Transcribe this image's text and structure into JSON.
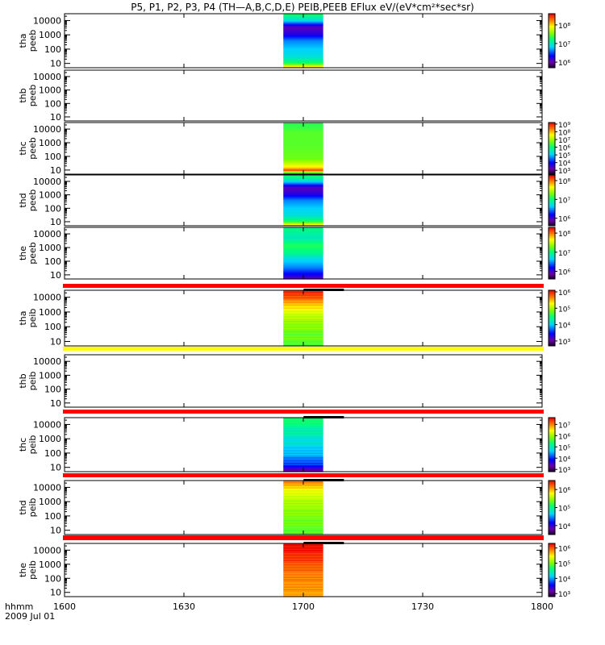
{
  "chart_data": {
    "type": "heatmap",
    "title": "P5, P1, P2, P3, P4 (TH—A,B,C,D,E) PEIB,PEEB EFlux eV/(eV*cm²*sec*sr)",
    "x_axis": {
      "label": "hhmm",
      "date": "2009 Jul 01",
      "ticks": [
        "1600",
        "1630",
        "1700",
        "1730",
        "1800"
      ],
      "range_minutes": [
        0,
        120
      ],
      "tick_minutes": [
        0,
        30,
        60,
        90,
        120
      ]
    },
    "y_axis": {
      "scale": "log",
      "ticks": [
        "10",
        "100",
        "1000",
        "10000"
      ],
      "range": [
        5,
        30000
      ]
    },
    "data_interval": {
      "start": "1655",
      "end": "1705"
    },
    "panels": [
      {
        "probe": "tha",
        "product": "peeb",
        "data": true,
        "profile": "ee1",
        "colorbar": {
          "ticks": [
            {
              "label": "10⁸",
              "v": 8
            },
            {
              "label": "10⁷",
              "v": 7
            },
            {
              "label": "10⁶",
              "v": 6
            }
          ],
          "range": [
            5.7,
            8.6
          ]
        }
      },
      {
        "probe": "thb",
        "product": "peeb",
        "data": false,
        "colorbar": null
      },
      {
        "probe": "thc",
        "product": "peeb",
        "data": true,
        "profile": "ee2",
        "colorbar": {
          "ticks": [
            {
              "label": "10⁹",
              "v": 9
            },
            {
              "label": "10⁸",
              "v": 8
            },
            {
              "label": "10⁷",
              "v": 7
            },
            {
              "label": "10⁶",
              "v": 6
            },
            {
              "label": "10⁵",
              "v": 5
            },
            {
              "label": "10⁴",
              "v": 4
            },
            {
              "label": "10³",
              "v": 3
            }
          ],
          "range": [
            2.5,
            9.2
          ]
        }
      },
      {
        "probe": "thd",
        "product": "peeb",
        "data": true,
        "profile": "ee1",
        "colorbar": {
          "ticks": [
            {
              "label": "10⁸",
              "v": 8
            },
            {
              "label": "10⁷",
              "v": 7
            },
            {
              "label": "10⁶",
              "v": 6
            }
          ],
          "range": [
            5.6,
            8.3
          ]
        }
      },
      {
        "probe": "the",
        "product": "peeb",
        "data": true,
        "profile": "ee3",
        "colorbar": {
          "ticks": [
            {
              "label": "10⁸",
              "v": 8
            },
            {
              "label": "10⁷",
              "v": 7
            },
            {
              "label": "10⁶",
              "v": 6
            }
          ],
          "range": [
            5.6,
            8.3
          ]
        }
      },
      {
        "probe": "tha",
        "product": "peib",
        "data": true,
        "profile": "ion1",
        "strip_color": "#ff0000",
        "colorbar": {
          "ticks": [
            {
              "label": "10⁶",
              "v": 6
            },
            {
              "label": "10⁵",
              "v": 5
            },
            {
              "label": "10⁴",
              "v": 4
            },
            {
              "label": "10³",
              "v": 3
            }
          ],
          "range": [
            2.7,
            6.1
          ]
        }
      },
      {
        "probe": "thb",
        "product": "peib",
        "data": false,
        "strip_color": "#ffff00",
        "colorbar": null
      },
      {
        "probe": "thc",
        "product": "peib",
        "data": true,
        "profile": "ion2",
        "strip_color": "#ff0000",
        "colorbar": {
          "ticks": [
            {
              "label": "10⁷",
              "v": 7
            },
            {
              "label": "10⁶",
              "v": 6
            },
            {
              "label": "10⁵",
              "v": 5
            },
            {
              "label": "10⁴",
              "v": 4
            },
            {
              "label": "10³",
              "v": 3
            }
          ],
          "range": [
            2.8,
            7.6
          ]
        }
      },
      {
        "probe": "thd",
        "product": "peib",
        "data": true,
        "profile": "ion3",
        "strip_color": "#ff0000",
        "colorbar": {
          "ticks": [
            {
              "label": "10⁶",
              "v": 6
            },
            {
              "label": "10⁵",
              "v": 5
            },
            {
              "label": "10⁴",
              "v": 4
            }
          ],
          "range": [
            3.5,
            6.5
          ]
        }
      },
      {
        "probe": "the",
        "product": "peib",
        "data": true,
        "profile": "ion4",
        "strip_color": "#ff0000",
        "colorbar": {
          "ticks": [
            {
              "label": "10⁶",
              "v": 6
            },
            {
              "label": "10⁵",
              "v": 5
            },
            {
              "label": "10⁴",
              "v": 4
            },
            {
              "label": "10³",
              "v": 3
            }
          ],
          "range": [
            2.8,
            6.3
          ]
        }
      }
    ]
  }
}
